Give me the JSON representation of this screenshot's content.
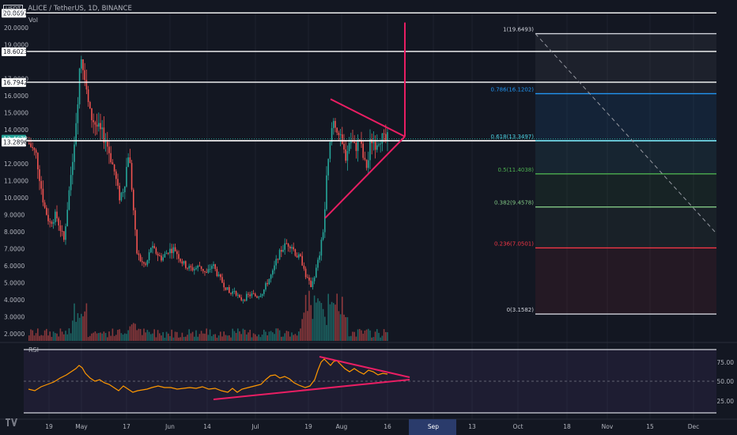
{
  "header": {
    "currency_badge": "USDT",
    "title": "ALICE / TetherUS, 1D, BINANCE",
    "volume_label": "Vol"
  },
  "price_axis": {
    "ticks": [
      "20.0000",
      "19.0000",
      "17.0000",
      "16.0000",
      "15.0000",
      "14.0000",
      "12.0000",
      "11.0000",
      "10.0000",
      "9.0000",
      "8.0000",
      "7.0000",
      "6.0000",
      "5.0000",
      "4.0000",
      "3.0000",
      "2.0000"
    ],
    "tag_top": "20.8697",
    "tag_level_1": "18.6023",
    "tag_level_2": "16.7942",
    "tag_current": "13.4678",
    "tag_level_3": "13.2896"
  },
  "fib_levels": [
    {
      "label": "1(19.6493)",
      "price": 19.6493,
      "color": "#d1d4dc"
    },
    {
      "label": "0.786(16.1202)",
      "price": 16.1202,
      "color": "#2196f3"
    },
    {
      "label": "0.618(13.3497)",
      "price": 13.3497,
      "color": "#4dd0e1"
    },
    {
      "label": "0.5(11.4038)",
      "price": 11.4038,
      "color": "#4caf50"
    },
    {
      "label": "0.382(9.4578)",
      "price": 9.4578,
      "color": "#81c784"
    },
    {
      "label": "0.236(7.0501)",
      "price": 7.0501,
      "color": "#f23645"
    },
    {
      "label": "0(3.1582)",
      "price": 3.1582,
      "color": "#d1d4dc"
    }
  ],
  "rsi": {
    "label": "RSI",
    "ticks": [
      "75.00",
      "50.00",
      "25.00"
    ]
  },
  "time_axis": {
    "labels": [
      "19",
      "May",
      "17",
      "Jun",
      "14",
      "Jul",
      "19",
      "Aug",
      "16",
      "Sep",
      "13",
      "Oct",
      "18",
      "Nov",
      "15",
      "Dec"
    ],
    "highlighted": "Sep"
  },
  "colors": {
    "background": "#131722",
    "up": "#26a69a",
    "down": "#ef5350",
    "pattern": "#e91e63",
    "rsi_line": "#ff9800"
  },
  "toolbar": {
    "logo_label": "TradingView logo"
  }
}
